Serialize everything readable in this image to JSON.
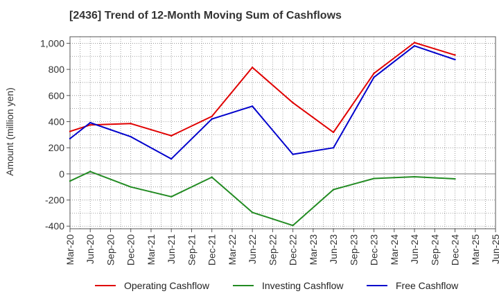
{
  "chart_data": {
    "type": "line",
    "title": "[2436]  Trend of 12-Month Moving Sum of Cashflows",
    "xlabel": "",
    "ylabel": "Amount (million yen)",
    "categories": [
      "Mar-20",
      "Jun-20",
      "Sep-20",
      "Dec-20",
      "Mar-21",
      "Jun-21",
      "Sep-21",
      "Dec-21",
      "Mar-22",
      "Jun-22",
      "Sep-22",
      "Dec-22",
      "Mar-23",
      "Jun-23",
      "Sep-23",
      "Dec-23",
      "Mar-24",
      "Jun-24",
      "Sep-24",
      "Dec-24",
      "Mar-25",
      "Jun-25"
    ],
    "ylim": [
      -420,
      1050
    ],
    "yticks": [
      -400,
      -200,
      0,
      200,
      400,
      600,
      800,
      1000
    ],
    "ytick_labels": [
      "-400",
      "-200",
      "0",
      "200",
      "400",
      "600",
      "800",
      "1,000"
    ],
    "grid": true,
    "legend_position": "bottom",
    "series": [
      {
        "name": "Operating Cashflow",
        "color": "#e00000",
        "x": [
          "Mar-20",
          "Jun-20",
          "Dec-20",
          "Jun-21",
          "Dec-21",
          "Jun-22",
          "Dec-22",
          "Jun-23",
          "Dec-23",
          "Jun-24",
          "Dec-24"
        ],
        "values": [
          325,
          375,
          385,
          292,
          440,
          815,
          545,
          318,
          770,
          1005,
          910
        ]
      },
      {
        "name": "Investing Cashflow",
        "color": "#228b22",
        "x": [
          "Mar-20",
          "Jun-20",
          "Dec-20",
          "Jun-21",
          "Dec-21",
          "Jun-22",
          "Dec-22",
          "Jun-23",
          "Dec-23",
          "Jun-24",
          "Dec-24"
        ],
        "values": [
          -55,
          18,
          -100,
          -175,
          -25,
          -295,
          -395,
          -120,
          -35,
          -22,
          -38
        ]
      },
      {
        "name": "Free Cashflow",
        "color": "#0000cc",
        "x": [
          "Mar-20",
          "Jun-20",
          "Dec-20",
          "Jun-21",
          "Dec-21",
          "Jun-22",
          "Dec-22",
          "Jun-23",
          "Dec-23",
          "Jun-24",
          "Dec-24"
        ],
        "values": [
          270,
          392,
          285,
          115,
          420,
          518,
          150,
          200,
          740,
          980,
          875
        ]
      }
    ]
  }
}
